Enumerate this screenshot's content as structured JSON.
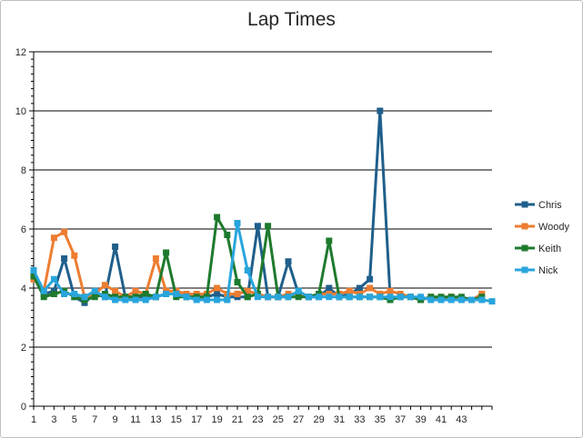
{
  "chart_data": {
    "type": "line",
    "title": "Lap Times",
    "xlabel": "",
    "ylabel": "",
    "ylim": [
      0,
      12
    ],
    "y_ticks": [
      0,
      2,
      4,
      6,
      8,
      10,
      12
    ],
    "x_range": [
      1,
      46
    ],
    "x_tick_labels": [
      1,
      3,
      5,
      7,
      9,
      11,
      13,
      15,
      17,
      19,
      21,
      23,
      25,
      27,
      29,
      31,
      33,
      35,
      37,
      39,
      41,
      43
    ],
    "grid": "horizontal",
    "legend_position": "right",
    "series": [
      {
        "name": "Chris",
        "color": "#1f5f8b",
        "values": [
          4.5,
          3.8,
          3.9,
          5.0,
          3.7,
          3.5,
          3.8,
          3.7,
          5.4,
          3.7,
          3.7,
          3.7,
          3.7,
          3.8,
          3.8,
          3.7,
          3.7,
          3.7,
          3.8,
          3.7,
          3.7,
          3.7,
          6.1,
          3.7,
          3.7,
          4.9,
          3.8,
          3.7,
          3.7,
          4.0,
          3.7,
          3.8,
          4.0,
          4.3,
          10.0,
          3.7
        ]
      },
      {
        "name": "Woody",
        "color": "#ed7d31",
        "values": [
          4.3,
          3.9,
          5.7,
          5.9,
          5.1,
          3.7,
          3.8,
          4.1,
          3.9,
          3.7,
          3.9,
          3.8,
          5.0,
          3.9,
          3.9,
          3.8,
          3.8,
          3.8,
          4.0,
          3.8,
          3.8,
          3.9,
          3.8,
          3.7,
          3.7,
          3.8,
          3.8,
          3.7,
          3.8,
          3.8,
          3.8,
          3.9,
          3.8,
          4.0,
          3.8,
          3.9,
          3.8,
          3.7,
          3.6,
          3.7,
          3.6,
          3.7,
          3.6,
          3.6,
          3.8
        ]
      },
      {
        "name": "Keith",
        "color": "#1e7a2e",
        "values": [
          4.4,
          3.7,
          3.8,
          3.9,
          3.7,
          3.6,
          3.7,
          3.8,
          3.7,
          3.7,
          3.7,
          3.8,
          3.7,
          5.2,
          3.7,
          3.7,
          3.7,
          3.7,
          6.4,
          5.8,
          4.2,
          3.7,
          3.8,
          6.1,
          3.7,
          3.7,
          3.7,
          3.7,
          3.8,
          5.6,
          3.7,
          3.7,
          3.7,
          3.7,
          3.7,
          3.6,
          3.7,
          3.7,
          3.6,
          3.7,
          3.7,
          3.7,
          3.7,
          3.6,
          3.7
        ]
      },
      {
        "name": "Nick",
        "color": "#28a5dc",
        "values": [
          4.6,
          3.9,
          4.3,
          3.8,
          3.8,
          3.7,
          3.9,
          3.7,
          3.6,
          3.6,
          3.6,
          3.6,
          3.7,
          3.8,
          3.8,
          3.7,
          3.6,
          3.6,
          3.6,
          3.6,
          6.2,
          4.6,
          3.7,
          3.7,
          3.7,
          3.7,
          3.9,
          3.7,
          3.7,
          3.7,
          3.7,
          3.7,
          3.7,
          3.7,
          3.7,
          3.7,
          3.7,
          3.7,
          3.7,
          3.6,
          3.6,
          3.6,
          3.6,
          3.6,
          3.6,
          3.55
        ]
      }
    ]
  }
}
